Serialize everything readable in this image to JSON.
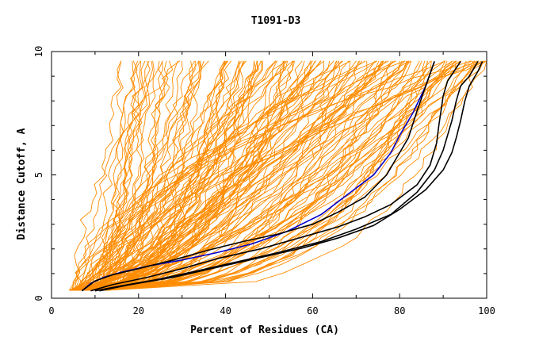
{
  "chart_data": {
    "type": "line",
    "title": "T1091-D3",
    "xlabel": "Percent of Residues (CA)",
    "ylabel": "Distance Cutoff, A",
    "xlim": [
      0,
      100
    ],
    "ylim": [
      0,
      10
    ],
    "x_ticks": [
      0,
      20,
      40,
      60,
      80,
      100
    ],
    "y_ticks": [
      0,
      5,
      10
    ],
    "grid": false,
    "legend": "none",
    "colors": {
      "background_models": "#ff8c00",
      "highlight_blue": "#0000cc",
      "highlight_black": "#000000",
      "axis": "#000000"
    },
    "background_series_count": 150,
    "highlighted_series": [
      {
        "color": "#0000cc",
        "x": [
          7,
          9,
          12,
          16,
          22,
          30,
          38,
          46,
          54,
          62,
          68,
          74,
          78,
          80,
          83,
          86,
          88
        ],
        "y": [
          0.3,
          0.6,
          0.85,
          1.05,
          1.3,
          1.55,
          1.85,
          2.2,
          2.7,
          3.4,
          4.2,
          5.0,
          5.9,
          6.6,
          7.5,
          8.6,
          9.6
        ]
      },
      {
        "color": "#000000",
        "x": [
          7,
          10,
          14,
          20,
          28,
          36,
          44,
          52,
          60,
          66,
          72,
          77,
          80,
          82,
          84,
          86,
          88
        ],
        "y": [
          0.3,
          0.7,
          0.95,
          1.2,
          1.55,
          1.95,
          2.3,
          2.6,
          3.0,
          3.5,
          4.1,
          5.0,
          5.9,
          6.5,
          7.6,
          8.6,
          9.6
        ]
      },
      {
        "color": "#000000",
        "x": [
          9,
          14,
          22,
          30,
          38,
          48,
          58,
          66,
          72,
          78,
          84,
          87,
          88.5,
          89,
          89.5,
          90,
          91,
          94
        ],
        "y": [
          0.3,
          0.55,
          0.85,
          1.2,
          1.6,
          2.0,
          2.5,
          2.9,
          3.3,
          3.8,
          4.6,
          5.4,
          6.3,
          7.0,
          7.6,
          8.2,
          8.8,
          9.6
        ]
      },
      {
        "color": "#000000",
        "x": [
          10,
          16,
          24,
          32,
          42,
          52,
          62,
          70,
          78,
          84,
          88,
          90,
          91,
          92,
          93,
          94,
          96,
          98
        ],
        "y": [
          0.3,
          0.5,
          0.75,
          1.05,
          1.45,
          1.85,
          2.3,
          2.8,
          3.4,
          4.3,
          5.2,
          6.0,
          6.6,
          7.2,
          8.0,
          8.6,
          9.0,
          9.6
        ]
      },
      {
        "color": "#000000",
        "x": [
          11,
          18,
          28,
          38,
          48,
          58,
          66,
          74,
          80,
          86,
          90,
          92,
          93,
          94,
          95,
          96,
          98,
          99
        ],
        "y": [
          0.3,
          0.55,
          0.85,
          1.25,
          1.65,
          2.05,
          2.45,
          2.95,
          3.6,
          4.4,
          5.2,
          5.9,
          6.5,
          7.2,
          8.0,
          8.6,
          9.2,
          9.6
        ]
      }
    ]
  }
}
